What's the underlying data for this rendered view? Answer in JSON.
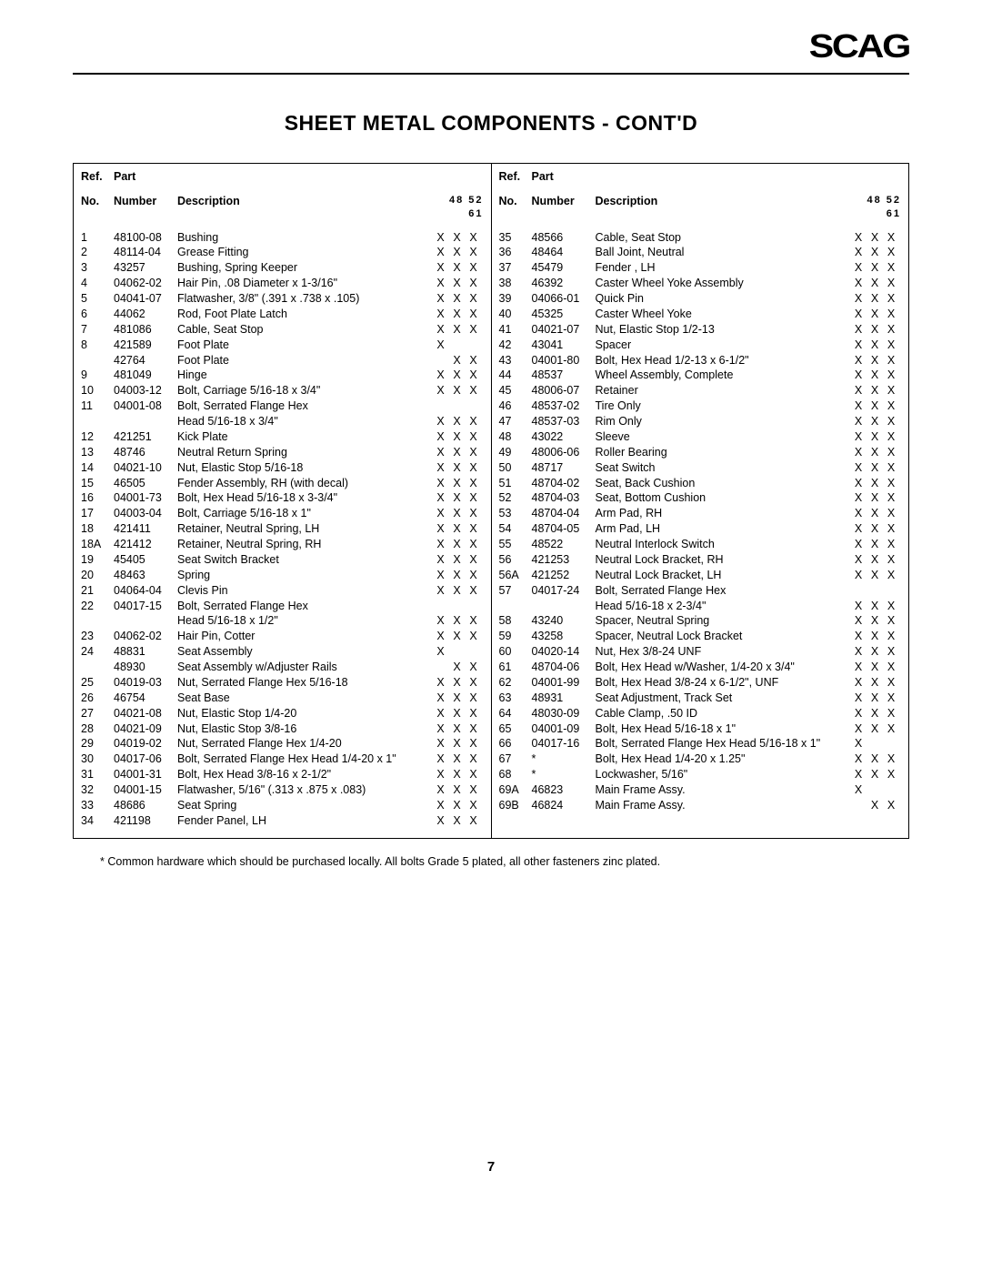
{
  "logo_text": "SCAG",
  "title": "SHEET METAL COMPONENTS - CONT'D",
  "header": {
    "line1": {
      "ref": "Ref.",
      "part": "Part"
    },
    "line2": {
      "no": "No.",
      "number": "Number",
      "desc": "Description",
      "flags": "48 52 61"
    }
  },
  "footnote": "* Common hardware which should be purchased locally.  All bolts Grade 5 plated, all other fasteners zinc plated.",
  "page_number": "7",
  "left_rows": [
    {
      "ref": "1",
      "part": "48100-08",
      "desc": "Bushing",
      "f": [
        "X",
        "X",
        "X"
      ]
    },
    {
      "ref": "2",
      "part": "48114-04",
      "desc": "Grease Fitting",
      "f": [
        "X",
        "X",
        "X"
      ]
    },
    {
      "ref": "3",
      "part": "43257",
      "desc": "Bushing, Spring Keeper",
      "f": [
        "X",
        "X",
        "X"
      ]
    },
    {
      "ref": "4",
      "part": "04062-02",
      "desc": "Hair Pin, .08 Diameter x 1-3/16\"",
      "f": [
        "X",
        "X",
        "X"
      ]
    },
    {
      "ref": "5",
      "part": "04041-07",
      "desc": "Flatwasher, 3/8\" (.391 x .738 x .105)",
      "f": [
        "X",
        "X",
        "X"
      ]
    },
    {
      "ref": "6",
      "part": "44062",
      "desc": "Rod, Foot Plate Latch",
      "f": [
        "X",
        "X",
        "X"
      ]
    },
    {
      "ref": "7",
      "part": "481086",
      "desc": "Cable, Seat Stop",
      "f": [
        "X",
        "X",
        "X"
      ]
    },
    {
      "ref": "8",
      "part": "421589",
      "desc": "Foot Plate",
      "f": [
        "X",
        "",
        ""
      ]
    },
    {
      "ref": "",
      "part": "42764",
      "desc": "Foot Plate",
      "f": [
        "",
        "X",
        "X"
      ]
    },
    {
      "ref": "9",
      "part": "481049",
      "desc": "Hinge",
      "f": [
        "X",
        "X",
        "X"
      ]
    },
    {
      "ref": "10",
      "part": "04003-12",
      "desc": "Bolt, Carriage 5/16-18 x 3/4\"",
      "f": [
        "X",
        "X",
        "X"
      ]
    },
    {
      "ref": "11",
      "part": "04001-08",
      "desc": "Bolt, Serrated Flange Hex",
      "f": [
        "",
        "",
        ""
      ]
    },
    {
      "ref": "",
      "part": "",
      "desc": "Head 5/16-18 x 3/4\"",
      "f": [
        "X",
        "X",
        "X"
      ]
    },
    {
      "ref": "12",
      "part": "421251",
      "desc": "Kick Plate",
      "f": [
        "X",
        "X",
        "X"
      ]
    },
    {
      "ref": "13",
      "part": "48746",
      "desc": "Neutral Return Spring",
      "f": [
        "X",
        "X",
        "X"
      ]
    },
    {
      "ref": "14",
      "part": "04021-10",
      "desc": "Nut, Elastic Stop 5/16-18",
      "f": [
        "X",
        "X",
        "X"
      ]
    },
    {
      "ref": "15",
      "part": "46505",
      "desc": "Fender Assembly, RH (with decal)",
      "f": [
        "X",
        "X",
        "X"
      ]
    },
    {
      "ref": "16",
      "part": "04001-73",
      "desc": "Bolt, Hex Head 5/16-18 x 3-3/4\"",
      "f": [
        "X",
        "X",
        "X"
      ]
    },
    {
      "ref": "17",
      "part": "04003-04",
      "desc": "Bolt, Carriage 5/16-18 x 1\"",
      "f": [
        "X",
        "X",
        "X"
      ]
    },
    {
      "ref": "18",
      "part": "421411",
      "desc": "Retainer, Neutral Spring, LH",
      "f": [
        "X",
        "X",
        "X"
      ]
    },
    {
      "ref": "18A",
      "part": "421412",
      "desc": "Retainer, Neutral Spring, RH",
      "f": [
        "X",
        "X",
        "X"
      ]
    },
    {
      "ref": "19",
      "part": "45405",
      "desc": "Seat Switch Bracket",
      "f": [
        "X",
        "X",
        "X"
      ]
    },
    {
      "ref": "20",
      "part": "48463",
      "desc": "Spring",
      "f": [
        "X",
        "X",
        "X"
      ]
    },
    {
      "ref": "21",
      "part": "04064-04",
      "desc": "Clevis Pin",
      "f": [
        "X",
        "X",
        "X"
      ]
    },
    {
      "ref": "22",
      "part": "04017-15",
      "desc": "Bolt, Serrated Flange Hex",
      "f": [
        "",
        "",
        ""
      ]
    },
    {
      "ref": "",
      "part": "",
      "desc": "Head 5/16-18 x 1/2\"",
      "f": [
        "X",
        "X",
        "X"
      ]
    },
    {
      "ref": "23",
      "part": "04062-02",
      "desc": "Hair Pin, Cotter",
      "f": [
        "X",
        "X",
        "X"
      ]
    },
    {
      "ref": "24",
      "part": "48831",
      "desc": "Seat Assembly",
      "f": [
        "X",
        "",
        ""
      ]
    },
    {
      "ref": "",
      "part": "48930",
      "desc": "Seat Assembly w/Adjuster Rails",
      "f": [
        "",
        "X",
        "X"
      ]
    },
    {
      "ref": "25",
      "part": "04019-03",
      "desc": "Nut, Serrated Flange Hex 5/16-18",
      "f": [
        "X",
        "X",
        "X"
      ]
    },
    {
      "ref": "26",
      "part": "46754",
      "desc": "Seat Base",
      "f": [
        "X",
        "X",
        "X"
      ]
    },
    {
      "ref": "27",
      "part": "04021-08",
      "desc": "Nut, Elastic Stop 1/4-20",
      "f": [
        "X",
        "X",
        "X"
      ]
    },
    {
      "ref": "28",
      "part": "04021-09",
      "desc": "Nut, Elastic Stop 3/8-16",
      "f": [
        "X",
        "X",
        "X"
      ]
    },
    {
      "ref": "29",
      "part": "04019-02",
      "desc": "Nut, Serrated Flange Hex 1/4-20",
      "f": [
        "X",
        "X",
        "X"
      ]
    },
    {
      "ref": "30",
      "part": "04017-06",
      "desc": "Bolt, Serrated Flange Hex Head 1/4-20 x 1\"",
      "f": [
        "X",
        "X",
        "X"
      ]
    },
    {
      "ref": "31",
      "part": "04001-31",
      "desc": "Bolt, Hex Head 3/8-16 x 2-1/2\"",
      "f": [
        "X",
        "X",
        "X"
      ]
    },
    {
      "ref": "32",
      "part": "04001-15",
      "desc": "Flatwasher, 5/16\" (.313 x .875 x .083)",
      "f": [
        "X",
        "X",
        "X"
      ]
    },
    {
      "ref": "33",
      "part": "48686",
      "desc": "Seat Spring",
      "f": [
        "X",
        "X",
        "X"
      ]
    },
    {
      "ref": "34",
      "part": "421198",
      "desc": "Fender Panel, LH",
      "f": [
        "X",
        "X",
        "X"
      ]
    }
  ],
  "right_rows": [
    {
      "ref": "35",
      "part": "48566",
      "desc": "Cable, Seat Stop",
      "f": [
        "X",
        "X",
        "X"
      ]
    },
    {
      "ref": "36",
      "part": "48464",
      "desc": "Ball Joint, Neutral",
      "f": [
        "X",
        "X",
        "X"
      ]
    },
    {
      "ref": "37",
      "part": "45479",
      "desc": "Fender , LH",
      "f": [
        "X",
        "X",
        "X"
      ]
    },
    {
      "ref": "38",
      "part": "46392",
      "desc": "Caster Wheel Yoke Assembly",
      "f": [
        "X",
        "X",
        "X"
      ]
    },
    {
      "ref": "39",
      "part": "04066-01",
      "desc": "Quick Pin",
      "f": [
        "X",
        "X",
        "X"
      ]
    },
    {
      "ref": "40",
      "part": "45325",
      "desc": "Caster Wheel Yoke",
      "f": [
        "X",
        "X",
        "X"
      ]
    },
    {
      "ref": "41",
      "part": "04021-07",
      "desc": "Nut, Elastic Stop 1/2-13",
      "f": [
        "X",
        "X",
        "X"
      ]
    },
    {
      "ref": "42",
      "part": "43041",
      "desc": "Spacer",
      "f": [
        "X",
        "X",
        "X"
      ]
    },
    {
      "ref": "43",
      "part": "04001-80",
      "desc": "Bolt, Hex Head 1/2-13 x 6-1/2\"",
      "f": [
        "X",
        "X",
        "X"
      ]
    },
    {
      "ref": "44",
      "part": "48537",
      "desc": "Wheel Assembly, Complete",
      "f": [
        "X",
        "X",
        "X"
      ]
    },
    {
      "ref": "45",
      "part": "48006-07",
      "desc": "Retainer",
      "f": [
        "X",
        "X",
        "X"
      ]
    },
    {
      "ref": "46",
      "part": "48537-02",
      "desc": "Tire Only",
      "f": [
        "X",
        "X",
        "X"
      ]
    },
    {
      "ref": "47",
      "part": "48537-03",
      "desc": "Rim Only",
      "f": [
        "X",
        "X",
        "X"
      ]
    },
    {
      "ref": "48",
      "part": "43022",
      "desc": "Sleeve",
      "f": [
        "X",
        "X",
        "X"
      ]
    },
    {
      "ref": "49",
      "part": "48006-06",
      "desc": "Roller Bearing",
      "f": [
        "X",
        "X",
        "X"
      ]
    },
    {
      "ref": "50",
      "part": "48717",
      "desc": "Seat Switch",
      "f": [
        "X",
        "X",
        "X"
      ]
    },
    {
      "ref": "51",
      "part": "48704-02",
      "desc": "Seat, Back Cushion",
      "f": [
        "X",
        "X",
        "X"
      ]
    },
    {
      "ref": "52",
      "part": "48704-03",
      "desc": "Seat, Bottom Cushion",
      "f": [
        "X",
        "X",
        "X"
      ]
    },
    {
      "ref": "53",
      "part": "48704-04",
      "desc": "Arm Pad, RH",
      "f": [
        "X",
        "X",
        "X"
      ]
    },
    {
      "ref": "54",
      "part": "48704-05",
      "desc": "Arm Pad, LH",
      "f": [
        "X",
        "X",
        "X"
      ]
    },
    {
      "ref": "55",
      "part": "48522",
      "desc": "Neutral Interlock Switch",
      "f": [
        "X",
        "X",
        "X"
      ]
    },
    {
      "ref": "56",
      "part": "421253",
      "desc": "Neutral Lock Bracket, RH",
      "f": [
        "X",
        "X",
        "X"
      ]
    },
    {
      "ref": "56A",
      "part": "421252",
      "desc": "Neutral Lock Bracket, LH",
      "f": [
        "X",
        "X",
        "X"
      ]
    },
    {
      "ref": "57",
      "part": "04017-24",
      "desc": "Bolt, Serrated Flange Hex",
      "f": [
        "",
        "",
        ""
      ]
    },
    {
      "ref": "",
      "part": "",
      "desc": "Head 5/16-18 x 2-3/4\"",
      "f": [
        "X",
        "X",
        "X"
      ]
    },
    {
      "ref": "58",
      "part": "43240",
      "desc": "Spacer, Neutral Spring",
      "f": [
        "X",
        "X",
        "X"
      ]
    },
    {
      "ref": "59",
      "part": "43258",
      "desc": "Spacer, Neutral Lock Bracket",
      "f": [
        "X",
        "X",
        "X"
      ]
    },
    {
      "ref": "60",
      "part": "04020-14",
      "desc": "Nut, Hex 3/8-24 UNF",
      "f": [
        "X",
        "X",
        "X"
      ]
    },
    {
      "ref": "61",
      "part": "48704-06",
      "desc": "Bolt, Hex Head w/Washer, 1/4-20 x 3/4\"",
      "f": [
        "X",
        "X",
        "X"
      ]
    },
    {
      "ref": "62",
      "part": "04001-99",
      "desc": "Bolt, Hex Head 3/8-24 x 6-1/2\", UNF",
      "f": [
        "X",
        "X",
        "X"
      ]
    },
    {
      "ref": "63",
      "part": "48931",
      "desc": "Seat Adjustment, Track Set",
      "f": [
        "X",
        "X",
        "X"
      ]
    },
    {
      "ref": "64",
      "part": "48030-09",
      "desc": "Cable Clamp, .50 ID",
      "f": [
        "X",
        "X",
        "X"
      ]
    },
    {
      "ref": "65",
      "part": "04001-09",
      "desc": "Bolt, Hex Head 5/16-18 x 1\"",
      "f": [
        "X",
        "X",
        "X"
      ]
    },
    {
      "ref": "66",
      "part": "04017-16",
      "desc": "Bolt, Serrated Flange Hex Head 5/16-18 x 1\"",
      "f": [
        "X",
        "",
        ""
      ]
    },
    {
      "ref": "67",
      "part": "*",
      "desc": "Bolt, Hex Head 1/4-20 x 1.25\"",
      "f": [
        "X",
        "X",
        "X"
      ]
    },
    {
      "ref": "68",
      "part": "*",
      "desc": "Lockwasher, 5/16\"",
      "f": [
        "X",
        "X",
        "X"
      ]
    },
    {
      "ref": "69A",
      "part": "46823",
      "desc": "Main Frame Assy.",
      "f": [
        "X",
        "",
        ""
      ]
    },
    {
      "ref": "69B",
      "part": "46824",
      "desc": "Main Frame Assy.",
      "f": [
        "",
        "X",
        "X"
      ]
    }
  ]
}
